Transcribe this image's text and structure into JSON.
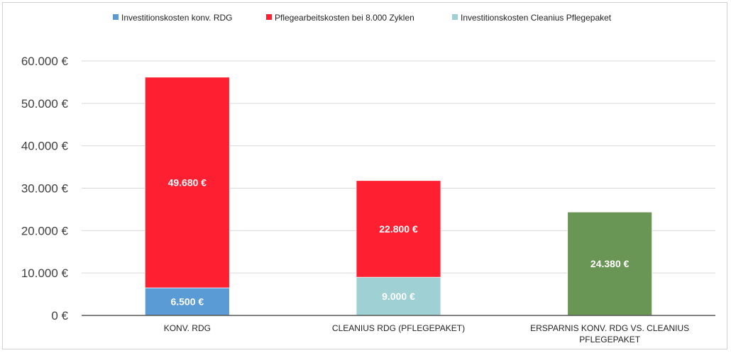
{
  "chart_data": {
    "type": "bar",
    "stacked": true,
    "categories": [
      [
        "KONV. RDG"
      ],
      [
        "CLEANIUS RDG (PFLEGEPAKET)"
      ],
      [
        "ERSPARNIS KONV. RDG VS. CLEANIUS",
        "PFLEGEPAKET"
      ]
    ],
    "series": [
      {
        "name": "Investitionskosten konv. RDG",
        "color": "#5b9bd5",
        "legend": true,
        "values": [
          6500,
          null,
          null
        ],
        "labels": [
          "6.500 €",
          "",
          ""
        ]
      },
      {
        "name": "Investitionskosten Cleanius Pflegepaket",
        "color": "#9fd0d4",
        "legend": true,
        "values": [
          null,
          9000,
          null
        ],
        "labels": [
          "",
          "9.000 €",
          ""
        ]
      },
      {
        "name": "Pflegearbeitskosten bei 8.000 Zyklen",
        "color": "#fe1f31",
        "legend": true,
        "values": [
          49680,
          22800,
          null
        ],
        "labels": [
          "49.680 €",
          "22.800 €",
          ""
        ]
      },
      {
        "name": "",
        "color": "#6a9655",
        "legend": false,
        "values": [
          null,
          null,
          24380
        ],
        "labels": [
          "",
          "",
          "24.380 €"
        ]
      }
    ],
    "legend_order": [
      0,
      2,
      1
    ],
    "legend_position": "top",
    "ylim": [
      0,
      60000
    ],
    "yticks": [
      0,
      10000,
      20000,
      30000,
      40000,
      50000,
      60000
    ],
    "ytick_labels": [
      "0 €",
      "10.000 €",
      "20.000 €",
      "30.000 €",
      "40.000 €",
      "50.000 €",
      "60.000 €"
    ],
    "grid": true
  }
}
